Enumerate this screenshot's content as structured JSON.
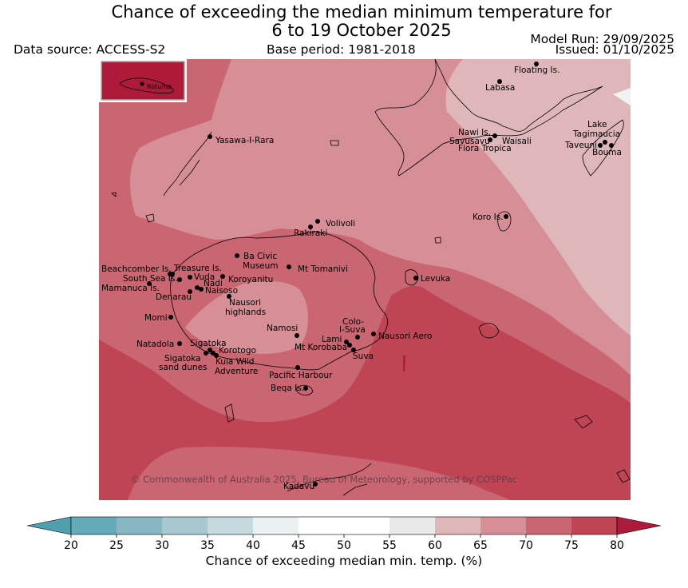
{
  "title_line1": "Chance of exceeding the median minimum temperature for",
  "title_line2": "6 to 19 October 2025",
  "data_source": "Data source: ACCESS-S2",
  "base_period": "Base period: 1981-2018",
  "model_run": "Model Run: 29/09/2025",
  "issued": "Issued: 01/10/2025",
  "copyright": "© Commonwealth of Australia 2025, Bureau of Meteorology, supported by COSPPac",
  "inset_label": "Rotuma",
  "colorbar": {
    "label": "Chance of exceeding median min. temp. (%)",
    "ticks": [
      "20",
      "25",
      "30",
      "35",
      "40",
      "45",
      "50",
      "55",
      "60",
      "65",
      "70",
      "75",
      "80"
    ],
    "colors": {
      "below20": "#4f9fae",
      "20-25": "#65aab8",
      "25-30": "#86b7c3",
      "30-35": "#a6c8ce",
      "35-40": "#c6d9de",
      "40-45": "#eaf1f3",
      "45-50": "#ffffff",
      "50-55": "#ffffff",
      "55-60": "#e9e9e9",
      "60-65": "#dfb7ba",
      "65-70": "#d68f97",
      "70-75": "#c96671",
      "75-80": "#bf4454",
      "above80": "#ad1a3a"
    }
  },
  "places": {
    "floating_is": "Floating Is.",
    "labasa": "Labasa",
    "yasawa": "Yasawa-I-Rara",
    "nawi": "Nawi Is.",
    "savusavu": "Savusavu",
    "waisali": "Waisali",
    "flora": "Flora Tropica",
    "lake": "Lake",
    "tagimaucia": "Tagimaucia",
    "taveuni": "Taveuni",
    "bouma": "Bouma",
    "koro": "Koro Is.",
    "volivoli": "Volivoli",
    "rakiraki": "Rakiraki",
    "ba_civic": "Ba Civic",
    "museum": "Museum",
    "mt_tomanivi": "Mt Tomanivi",
    "levuka": "Levuka",
    "beachcomber": "Beachcomber Is.",
    "treasure": "Treasure Is.",
    "south_sea": "South Sea Is.",
    "vuda": "Vuda",
    "koroyanitu": "Koroyanitu",
    "nadi": "Nadi",
    "mamanuca": "Mamanuca Is.",
    "naisoso": "Naisoso",
    "denarau": "Denarau",
    "nausori_h1": "Nausori",
    "nausori_h2": "highlands",
    "momi": "Momi",
    "namosi": "Namosi",
    "colo1": "Colo-",
    "colo2": "I-Suva",
    "nausori_aero": "Nausori Aero",
    "lami": "Lami",
    "natadola": "Natadola",
    "sigatoka": "Sigatoka",
    "mt_korobaba": "Mt Korobaba",
    "korotogo": "Korotogo",
    "suva": "Suva",
    "sigatoka_dunes1": "Sigatoka",
    "sigatoka_dunes2": "sand dunes",
    "kula1": "Kula Wild",
    "kula2": "Adventure",
    "pacific_harbour": "Pacific Harbour",
    "beqa": "Beqa Is.",
    "kadavu": "Kadavu"
  }
}
